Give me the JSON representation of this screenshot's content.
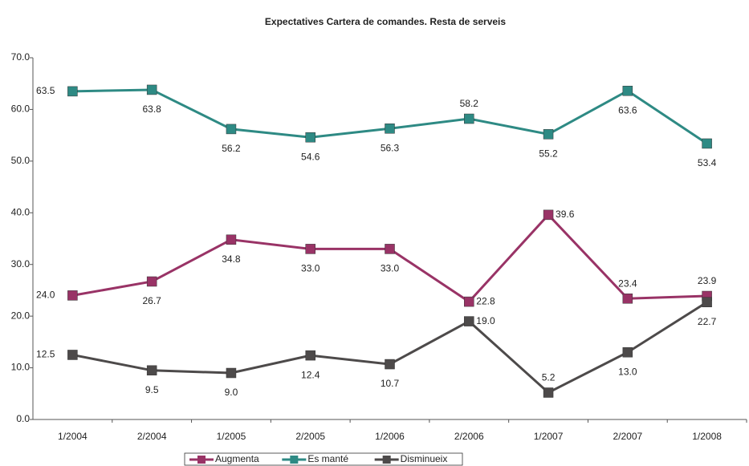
{
  "chart_data": {
    "type": "line",
    "title": "Expectatives Cartera de comandes. Resta de serveis",
    "categories": [
      "1/2004",
      "2/2004",
      "1/2005",
      "2/2005",
      "1/2006",
      "2/2006",
      "1/2007",
      "2/2007",
      "1/2008"
    ],
    "series": [
      {
        "name": "Augmenta",
        "color": "#993366",
        "values": [
          24.0,
          26.7,
          34.8,
          33.0,
          33.0,
          22.8,
          39.6,
          23.4,
          23.9
        ],
        "value_labels": [
          "24.0",
          "26.7",
          "34.8",
          "33.0",
          "33.0",
          "22.8",
          "39.6",
          "23.4",
          "23.9"
        ]
      },
      {
        "name": "Es manté",
        "color": "#2e8a84",
        "values": [
          63.5,
          63.8,
          56.2,
          54.6,
          56.3,
          58.2,
          55.2,
          63.6,
          53.4
        ],
        "value_labels": [
          "63.5",
          "63.8",
          "56.2",
          "54.6",
          "56.3",
          "58.2",
          "55.2",
          "63.6",
          "53.4"
        ]
      },
      {
        "name": "Disminueix",
        "color": "#4d4a4a",
        "values": [
          12.5,
          9.5,
          9.0,
          12.4,
          10.7,
          19.0,
          5.2,
          13.0,
          22.7
        ],
        "value_labels": [
          "12.5",
          "9.5",
          "9.0",
          "12.4",
          "10.7",
          "19.0",
          "5.2",
          "13.0",
          "22.7"
        ]
      }
    ],
    "ylim": [
      0,
      70
    ],
    "yticks": [
      {
        "value": 0,
        "label": "0.0"
      },
      {
        "value": 10,
        "label": "10.0"
      },
      {
        "value": 20,
        "label": "20.0"
      },
      {
        "value": 30,
        "label": "30.0"
      },
      {
        "value": 40,
        "label": "40.0"
      },
      {
        "value": 50,
        "label": "50.0"
      },
      {
        "value": 60,
        "label": "60.0"
      },
      {
        "value": 70,
        "label": "70.0"
      }
    ],
    "legend": "bottom"
  }
}
